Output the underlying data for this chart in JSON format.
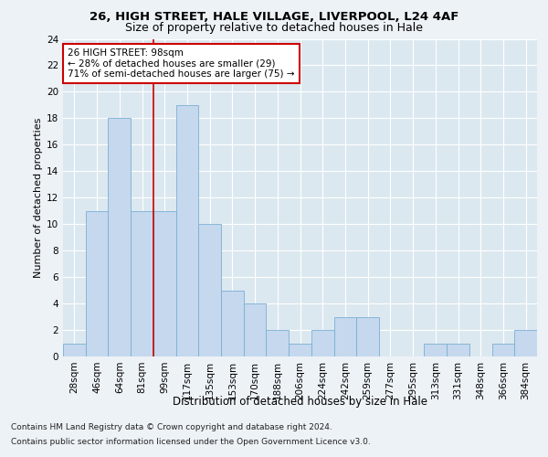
{
  "title1": "26, HIGH STREET, HALE VILLAGE, LIVERPOOL, L24 4AF",
  "title2": "Size of property relative to detached houses in Hale",
  "xlabel": "Distribution of detached houses by size in Hale",
  "ylabel": "Number of detached properties",
  "categories": [
    "28sqm",
    "46sqm",
    "64sqm",
    "81sqm",
    "99sqm",
    "117sqm",
    "135sqm",
    "153sqm",
    "170sqm",
    "188sqm",
    "206sqm",
    "224sqm",
    "242sqm",
    "259sqm",
    "277sqm",
    "295sqm",
    "313sqm",
    "331sqm",
    "348sqm",
    "366sqm",
    "384sqm"
  ],
  "values": [
    1,
    11,
    18,
    11,
    11,
    19,
    10,
    5,
    4,
    2,
    1,
    2,
    3,
    3,
    0,
    0,
    1,
    1,
    0,
    1,
    2
  ],
  "bar_color": "#c5d8ed",
  "bar_edge_color": "#7aafd4",
  "ylim": [
    0,
    24
  ],
  "yticks": [
    0,
    2,
    4,
    6,
    8,
    10,
    12,
    14,
    16,
    18,
    20,
    22,
    24
  ],
  "redline_bin_index": 4,
  "annotation_line1": "26 HIGH STREET: 98sqm",
  "annotation_line2": "← 28% of detached houses are smaller (29)",
  "annotation_line3": "71% of semi-detached houses are larger (75) →",
  "footer1": "Contains HM Land Registry data © Crown copyright and database right 2024.",
  "footer2": "Contains public sector information licensed under the Open Government Licence v3.0.",
  "bg_color": "#edf2f7",
  "plot_bg_color": "#dce8f0",
  "grid_color": "#ffffff",
  "annotation_box_color": "#cc0000",
  "redline_color": "#cc0000",
  "title1_fontsize": 9.5,
  "title2_fontsize": 9.0,
  "ylabel_fontsize": 8.0,
  "xlabel_fontsize": 8.5,
  "tick_fontsize": 7.5,
  "footer_fontsize": 6.5,
  "ann_fontsize": 7.5
}
